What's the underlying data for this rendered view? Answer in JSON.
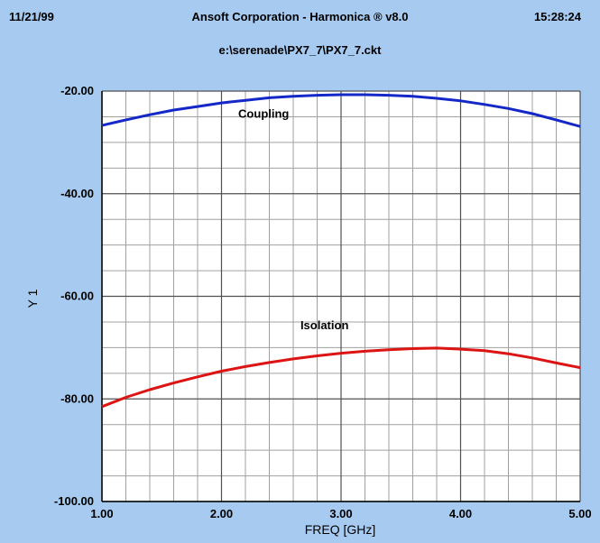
{
  "header": {
    "date": "11/21/99",
    "title": "Ansoft Corporation - Harmonica ® v8.0",
    "time": "15:28:24",
    "file": "e:\\serenade\\PX7_7\\PX7_7.ckt"
  },
  "colors": {
    "background": "#a6caf0",
    "plot_bg": "#ffffff",
    "grid": "#a0a0a0",
    "coupling": "#1428c8",
    "isolation": "#dc1414"
  },
  "chart_data": {
    "type": "line",
    "title": "",
    "xlabel": "FREQ [GHz]",
    "ylabel": "Y 1",
    "xlim": [
      1.0,
      5.0
    ],
    "ylim": [
      -100.0,
      -20.0
    ],
    "x_ticks": [
      "1.00",
      "2.00",
      "3.00",
      "4.00",
      "5.00"
    ],
    "y_ticks": [
      "-20.00",
      "-40.00",
      "-60.00",
      "-80.00",
      "-100.00"
    ],
    "x_minor_step": 0.2,
    "y_minor_step": 5,
    "grid": true,
    "series": [
      {
        "name": "Coupling",
        "color": "#1428c8",
        "x": [
          1.0,
          1.2,
          1.4,
          1.6,
          1.8,
          2.0,
          2.2,
          2.4,
          2.6,
          2.8,
          3.0,
          3.2,
          3.4,
          3.6,
          3.8,
          4.0,
          4.2,
          4.4,
          4.6,
          4.8,
          5.0
        ],
        "values": [
          -26.7,
          -25.6,
          -24.6,
          -23.7,
          -23.0,
          -22.3,
          -21.8,
          -21.3,
          -21.0,
          -20.8,
          -20.7,
          -20.7,
          -20.8,
          -21.0,
          -21.4,
          -21.9,
          -22.6,
          -23.4,
          -24.4,
          -25.6,
          -26.9
        ]
      },
      {
        "name": "Isolation",
        "color": "#dc1414",
        "x": [
          1.0,
          1.2,
          1.4,
          1.6,
          1.8,
          2.0,
          2.2,
          2.4,
          2.6,
          2.8,
          3.0,
          3.2,
          3.4,
          3.6,
          3.8,
          4.0,
          4.2,
          4.4,
          4.6,
          4.8,
          5.0
        ],
        "values": [
          -81.5,
          -79.7,
          -78.2,
          -76.9,
          -75.7,
          -74.6,
          -73.7,
          -72.9,
          -72.2,
          -71.6,
          -71.1,
          -70.7,
          -70.4,
          -70.2,
          -70.1,
          -70.3,
          -70.6,
          -71.2,
          -72.0,
          -73.0,
          -73.9
        ]
      }
    ]
  }
}
